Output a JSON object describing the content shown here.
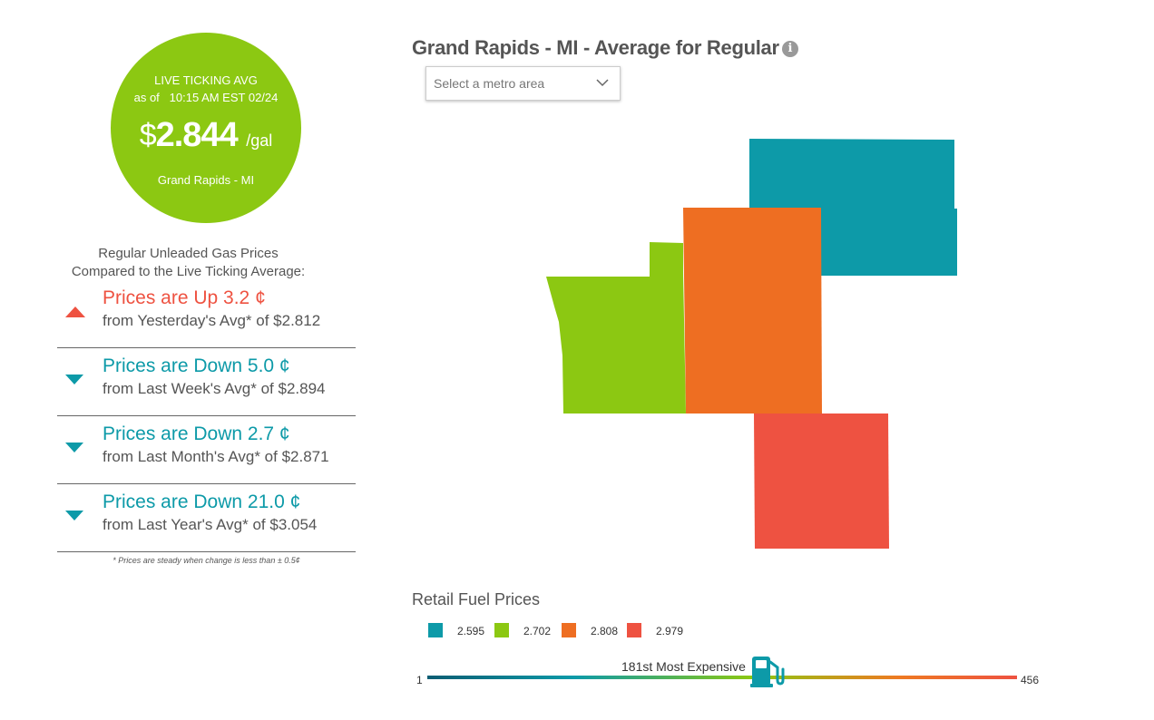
{
  "live": {
    "label": "LIVE TICKING AVG",
    "as_of_prefix": "as of",
    "as_of_time": "10:15 AM EST 02/24",
    "currency": "$",
    "price": "2.844",
    "unit": "/gal",
    "location": "Grand Rapids - MI"
  },
  "compare": {
    "heading_line1": "Regular Unleaded Gas Prices",
    "heading_line2": "Compared to the Live Ticking Average:",
    "rows": [
      {
        "direction": "up",
        "main": "Prices are Up 3.2 ¢",
        "sub": "from Yesterday's Avg* of $2.812"
      },
      {
        "direction": "down",
        "main": "Prices are Down 5.0 ¢",
        "sub": "from Last Week's Avg* of $2.894"
      },
      {
        "direction": "down",
        "main": "Prices are Down 2.7 ¢",
        "sub": "from Last Month's Avg* of $2.871"
      },
      {
        "direction": "down",
        "main": "Prices are Down 21.0 ¢",
        "sub": "from Last Year's Avg* of $3.054"
      }
    ],
    "footnote": "* Prices are steady when change is less than ± 0.5¢"
  },
  "map": {
    "title": "Grand Rapids - MI - Average for Regular",
    "info_icon": "info-icon",
    "metro_select_placeholder": "Select a metro area"
  },
  "legend": {
    "title": "Retail Fuel Prices",
    "items": [
      {
        "color": "#0d9aa8",
        "value": "2.595"
      },
      {
        "color": "#8cc812",
        "value": "2.702"
      },
      {
        "color": "#ee6e22",
        "value": "2.808"
      },
      {
        "color": "#ee5241",
        "value": "2.979"
      }
    ]
  },
  "ranking": {
    "label": "181st Most Expensive",
    "min": "1",
    "max": "456",
    "rank": 181,
    "icon": "gas-pump-icon"
  },
  "colors": {
    "teal": "#0d9aa8",
    "green": "#8cc812",
    "orange": "#ee6e22",
    "red": "#ee5241"
  }
}
